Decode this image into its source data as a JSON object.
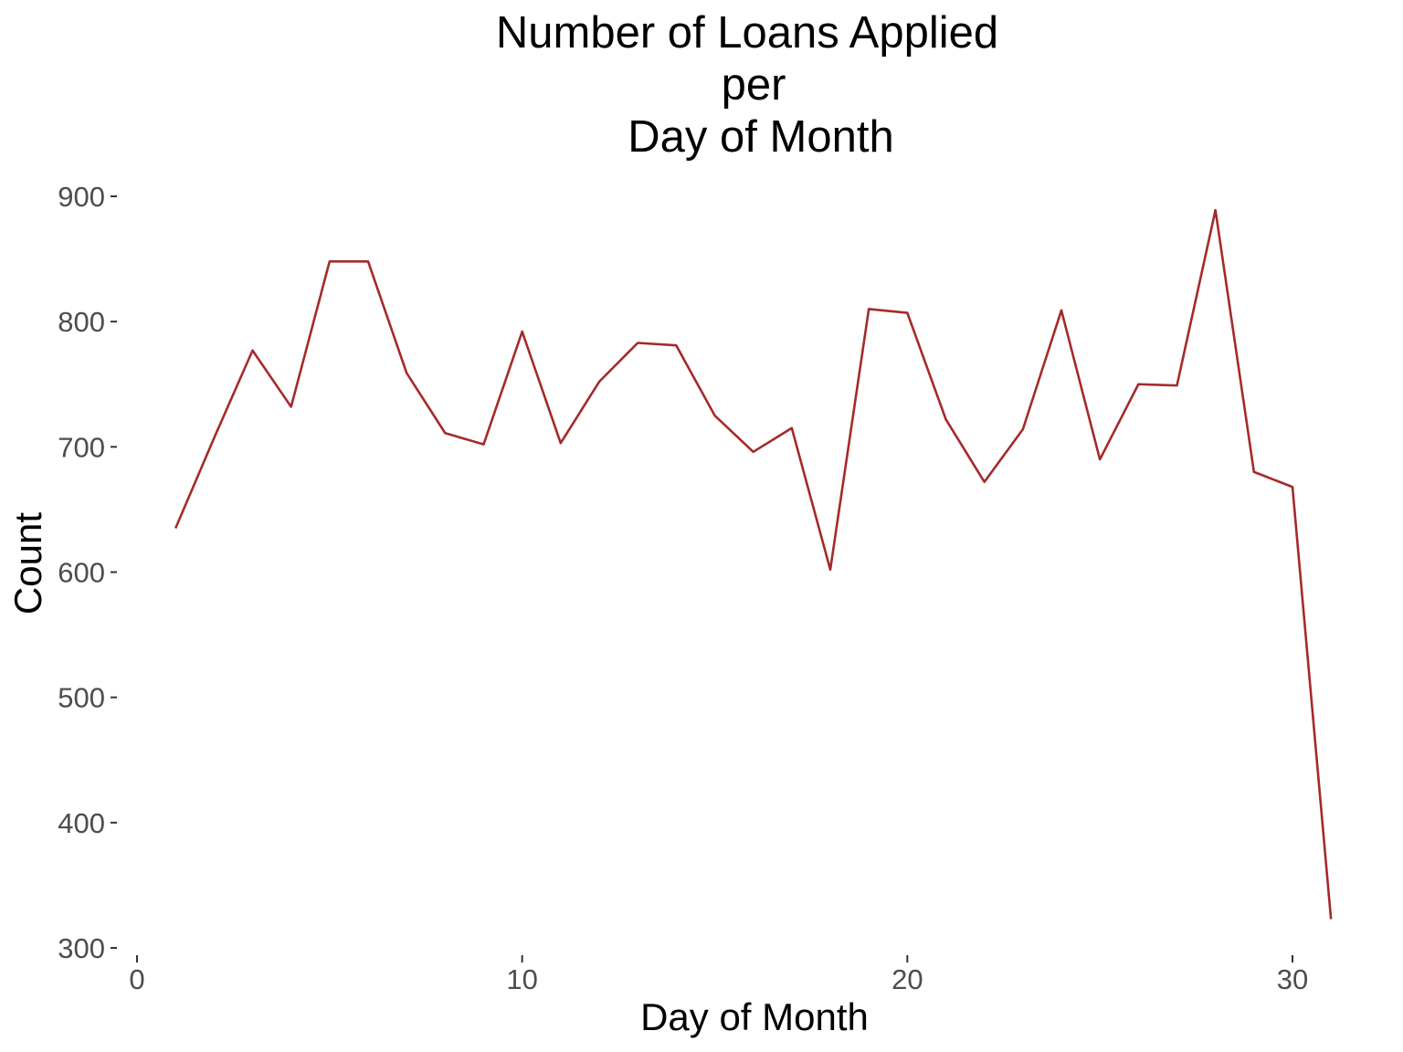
{
  "chart_data": {
    "type": "line",
    "title": [
      "Number of Loans Applied",
      "per",
      "Day of Month"
    ],
    "xlabel": "Day of Month",
    "ylabel": "Count",
    "xlim": [
      0,
      31
    ],
    "ylim": [
      300,
      900
    ],
    "x_ticks": [
      0,
      10,
      20,
      30
    ],
    "y_ticks": [
      300,
      400,
      500,
      600,
      700,
      800,
      900
    ],
    "grid": false,
    "legend": "none",
    "line_color": "#a52a2a",
    "series": [
      {
        "x": [
          1,
          2,
          3,
          4,
          5,
          6,
          7,
          8,
          9,
          10,
          11,
          12,
          13,
          14,
          15,
          16,
          17,
          18,
          19,
          20,
          21,
          22,
          23,
          24,
          25,
          26,
          27,
          28,
          29,
          30,
          31
        ],
        "values": [
          635,
          707,
          777,
          732,
          848,
          848,
          759,
          711,
          702,
          792,
          703,
          752,
          783,
          781,
          725,
          696,
          715,
          602,
          810,
          807,
          722,
          672,
          714,
          809,
          690,
          750,
          749,
          889,
          680,
          668,
          323
        ]
      }
    ]
  }
}
